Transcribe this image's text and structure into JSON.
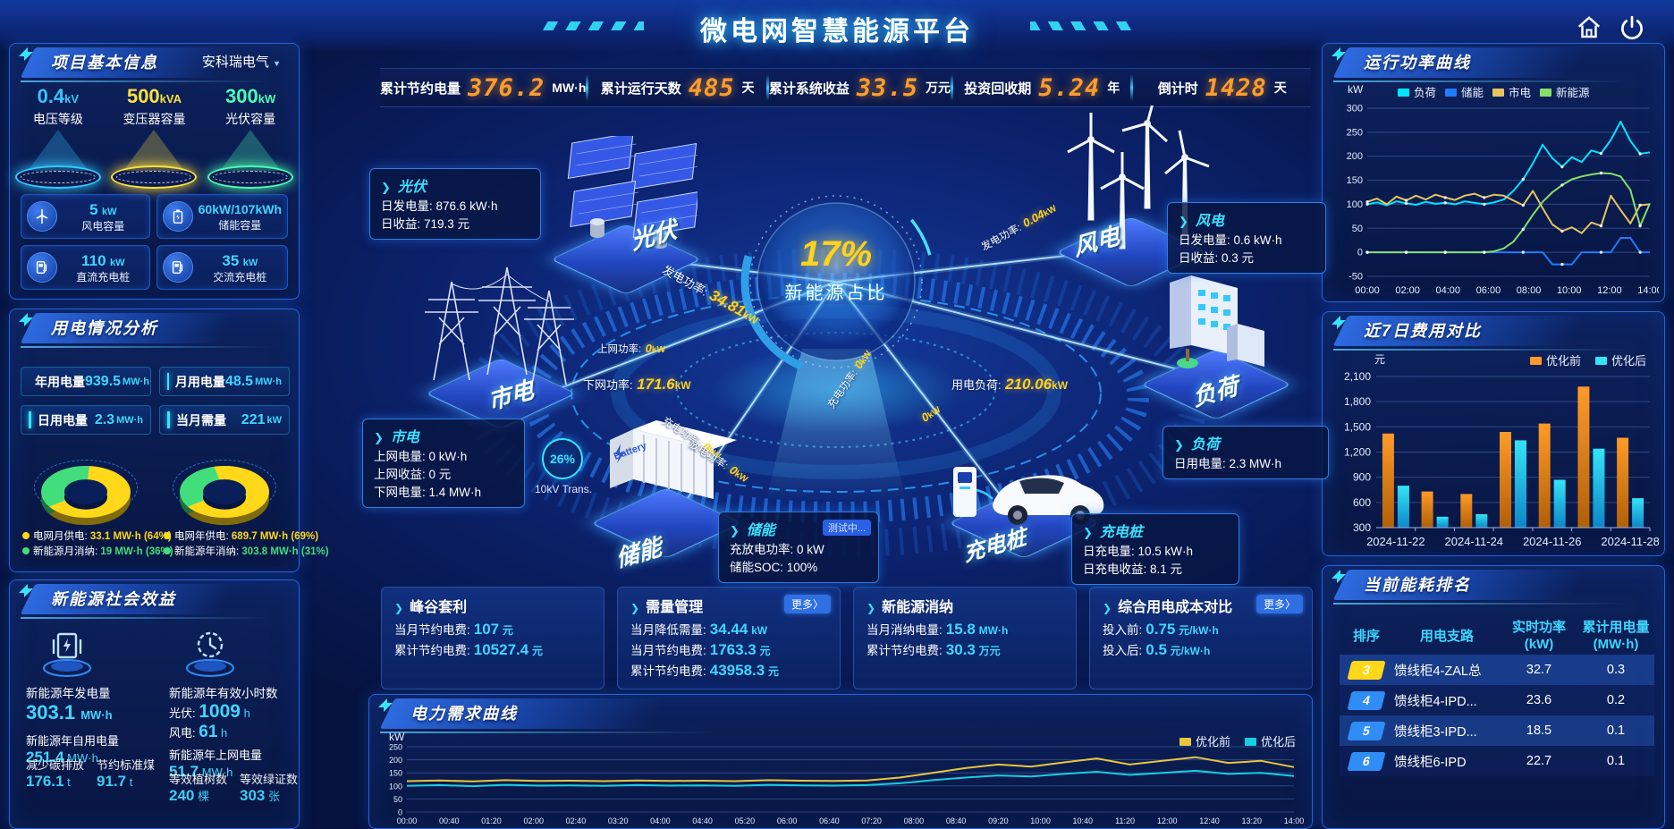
{
  "header": {
    "title": "微电网智慧能源平台"
  },
  "glyphs": {
    "chevron": "❯",
    "caret": "▼"
  },
  "stats_bar": [
    {
      "label": "累计节约电量",
      "value": "376.2",
      "unit": "MW·h"
    },
    {
      "label": "累计运行天数",
      "value": "485",
      "unit": "天"
    },
    {
      "label": "累计系统收益",
      "value": "33.5",
      "unit": "万元"
    },
    {
      "label": "投资回收期",
      "value": "5.24",
      "unit": "年"
    },
    {
      "label": "倒计时",
      "value": "1428",
      "unit": "天"
    }
  ],
  "left": {
    "project": {
      "title": "项目基本信息",
      "company": "安科瑞电气",
      "spotlights": [
        {
          "value": "0.4",
          "unit": "kV",
          "label": "电压等级",
          "color": "#35c8ff"
        },
        {
          "value": "500",
          "unit": "kVA",
          "label": "变压器容量",
          "color": "#ffe23e"
        },
        {
          "value": "300",
          "unit": "kW",
          "label": "光伏容量",
          "color": "#4dffb4"
        }
      ],
      "cards": [
        {
          "value": "5",
          "unit": "kW",
          "label": "风电容量"
        },
        {
          "value": "60kW/107kWh",
          "unit": "",
          "label": "储能容量"
        },
        {
          "value": "110",
          "unit": "kW",
          "label": "直流充电桩"
        },
        {
          "value": "35",
          "unit": "kW",
          "label": "交流充电桩"
        }
      ]
    },
    "usage": {
      "title": "用电情况分析",
      "stats": [
        {
          "label": "年用电量",
          "value": "939.5",
          "unit": "MW·h"
        },
        {
          "label": "月用电量",
          "value": "48.5",
          "unit": "MW·h"
        },
        {
          "label": "日用电量",
          "value": "2.3",
          "unit": "MW·h"
        },
        {
          "label": "当月需量",
          "value": "221",
          "unit": "kW"
        }
      ]
    },
    "benefits": {
      "title": "新能源社会效益",
      "gen": {
        "label": "新能源年发电量",
        "value": "303.1",
        "unit": "MW·h"
      },
      "hours": {
        "label": "新能源年有效小时数",
        "pv_label": "光伏:",
        "pv_value": "1009",
        "pv_unit": "h",
        "wind_label": "风电:",
        "wind_value": "61",
        "wind_unit": "h"
      },
      "self": {
        "label": "新能源年自用电量",
        "value": "251.4",
        "unit": "MW·h"
      },
      "export": {
        "label": "新能源年上网电量",
        "value": "51.7",
        "unit": "MW·h"
      },
      "co2": {
        "label": "减少碳排放",
        "value": "176.1",
        "unit": "t"
      },
      "coal": {
        "label": "节约标准煤",
        "value": "91.7",
        "unit": "t"
      },
      "trees": {
        "label": "等效植树数",
        "value": "240",
        "unit": "棵"
      },
      "certs": {
        "label": "等效绿证数",
        "value": "303",
        "unit": "张"
      }
    }
  },
  "scene": {
    "center_pct": "17%",
    "center_label": "新能源占比",
    "transformer_pct": "26%",
    "transformer_label": "10kV Trans.",
    "nodes": {
      "pv": "光伏",
      "grid": "市电",
      "storage": "储能",
      "wind": "风电",
      "load": "负荷",
      "pile": "充电桩"
    },
    "info_boxes": {
      "pv": {
        "title": "光伏",
        "rows": [
          [
            "日发电量:",
            "876.6 kW·h"
          ],
          [
            "日收益:",
            "719.3 元"
          ]
        ]
      },
      "grid": {
        "title": "市电",
        "rows": [
          [
            "上网电量:",
            "0 kW·h"
          ],
          [
            "上网收益:",
            "0 元"
          ],
          [
            "下网电量:",
            "1.4 MW·h"
          ]
        ]
      },
      "wind": {
        "title": "风电",
        "rows": [
          [
            "日发电量:",
            "0.6 kW·h"
          ],
          [
            "日收益:",
            "0.3 元"
          ]
        ]
      },
      "load": {
        "title": "负荷",
        "rows": [
          [
            "日用电量:",
            "2.3 MW·h"
          ]
        ]
      },
      "pile": {
        "title": "充电桩",
        "rows": [
          [
            "日充电量:",
            "10.5 kW·h"
          ],
          [
            "日充电收益:",
            "8.1 元"
          ]
        ]
      },
      "storage": {
        "title": "储能",
        "badge": "测试中...",
        "rows": [
          [
            "充放电功率:",
            "0 kW"
          ],
          [
            "储能SOC:",
            "100%"
          ]
        ]
      }
    },
    "flow_labels": {
      "pv_gen": {
        "label": "发电功率:",
        "value": "34.81",
        "unit": "kW"
      },
      "grid_up": {
        "label": "上网功率:",
        "value": "0",
        "unit": "kW"
      },
      "grid_down": {
        "label": "下网功率:",
        "value": "171.6",
        "unit": "kW"
      },
      "wind_gen": {
        "label": "发电功率:",
        "value": "0.04",
        "unit": "kW"
      },
      "load_power": {
        "label": "用电负荷:",
        "value": "210.06",
        "unit": "kW"
      },
      "storage_charge": {
        "label": "充电功率:",
        "value": "0",
        "unit": "kW"
      },
      "storage_discharge": {
        "label": "放电功率:",
        "value": "0",
        "unit": "kW"
      },
      "pile_charge": {
        "label": "充电功率:",
        "value": "0",
        "unit": "kW"
      },
      "load_branch": {
        "label": "",
        "value": "0",
        "unit": "kW"
      }
    }
  },
  "cards": [
    {
      "title": "峰谷套利",
      "more": "",
      "rows": [
        {
          "label": "当月节约电费:",
          "value": "107",
          "unit": "元"
        },
        {
          "label": "累计节约电费:",
          "value": "10527.4",
          "unit": "元"
        }
      ]
    },
    {
      "title": "需量管理",
      "more": "更多〉",
      "rows": [
        {
          "label": "当月降低需量:",
          "value": "34.44",
          "unit": "kW"
        },
        {
          "label": "当月节约电费:",
          "value": "1763.3",
          "unit": "元"
        },
        {
          "label": "累计节约电费:",
          "value": "43958.3",
          "unit": "元"
        }
      ]
    },
    {
      "title": "新能源消纳",
      "more": "",
      "rows": [
        {
          "label": "当月消纳电量:",
          "value": "15.8",
          "unit": "MW·h"
        },
        {
          "label": "累计节约电费:",
          "value": "30.3",
          "unit": "万元"
        }
      ]
    },
    {
      "title": "综合用电成本对比",
      "more": "更多〉",
      "rows": [
        {
          "label": "投入前:",
          "value": "0.75",
          "unit": "元/kW·h"
        },
        {
          "label": "投入后:",
          "value": "0.5",
          "unit": "元/kW·h"
        }
      ]
    }
  ],
  "right": {
    "power_panel_title": "运行功率曲线",
    "cost_panel_title": "近7日费用对比",
    "ranking": {
      "title": "当前能耗排名",
      "col_rank": "排序",
      "col_branch": "用电支路",
      "col_power": "实时功率",
      "col_power_unit": "(kW)",
      "col_energy": "累计用电量",
      "col_energy_unit": "(MW·h)",
      "rows": [
        {
          "rank": "3",
          "branch": "馈线柜4-ZAL总",
          "power": "32.7",
          "energy": "0.3",
          "badge_color": "#ffd819",
          "rank_color": "#0a2a66"
        },
        {
          "rank": "4",
          "branch": "馈线柜4-IPD...",
          "power": "23.6",
          "energy": "0.2",
          "badge_color": "#2f8df5",
          "rank_color": "#ffffff"
        },
        {
          "rank": "5",
          "branch": "馈线柜3-IPD...",
          "power": "18.5",
          "energy": "0.1",
          "badge_color": "#2f8df5",
          "rank_color": "#ffffff"
        },
        {
          "rank": "6",
          "branch": "馈线柜6-IPD",
          "power": "22.7",
          "energy": "0.1",
          "badge_color": "#2f8df5",
          "rank_color": "#ffffff"
        }
      ]
    }
  },
  "chart_data": [
    {
      "id": "power-curve",
      "type": "line",
      "title": "运行功率曲线",
      "ylabel": "kW",
      "ylim": [
        -50,
        300
      ],
      "yticks": [
        -50,
        0,
        50,
        100,
        150,
        200,
        250,
        300
      ],
      "x_labels": [
        "00:00",
        "02:00",
        "04:00",
        "06:00",
        "08:00",
        "10:00",
        "12:00",
        "14:00"
      ],
      "legend_position": "top",
      "grid": true,
      "series": [
        {
          "name": "负荷",
          "color": "#00e4ff",
          "values": [
            100,
            104,
            98,
            106,
            102,
            99,
            105,
            101,
            103,
            100,
            106,
            103,
            100,
            104,
            110,
            128,
            152,
            185,
            224,
            196,
            178,
            198,
            188,
            212,
            206,
            234,
            272,
            232,
            205,
            208
          ]
        },
        {
          "name": "储能",
          "color": "#1f7bff",
          "values": [
            0,
            0,
            0,
            0,
            0,
            0,
            0,
            0,
            0,
            0,
            0,
            0,
            0,
            0,
            0,
            0,
            0,
            0,
            0,
            -25,
            -25,
            -25,
            0,
            0,
            0,
            0,
            30,
            30,
            0,
            0
          ]
        },
        {
          "name": "市电",
          "color": "#e6c460",
          "values": [
            105,
            112,
            100,
            116,
            108,
            118,
            110,
            120,
            114,
            109,
            118,
            122,
            114,
            120,
            118,
            108,
            98,
            128,
            92,
            58,
            44,
            52,
            40,
            62,
            55,
            118,
            88,
            60,
            98,
            100
          ]
        },
        {
          "name": "新能源",
          "color": "#86e06a",
          "values": [
            0,
            0,
            0,
            0,
            0,
            0,
            0,
            0,
            0,
            0,
            0,
            0,
            0,
            2,
            8,
            22,
            48,
            78,
            105,
            125,
            140,
            152,
            158,
            162,
            165,
            164,
            158,
            130,
            55,
            102
          ]
        }
      ]
    },
    {
      "id": "cost-compare",
      "type": "bar",
      "title": "近7日费用对比",
      "ylabel": "元",
      "ylim": [
        300,
        2100
      ],
      "yticks": [
        300,
        600,
        900,
        1200,
        1500,
        1800,
        2100
      ],
      "categories": [
        "2024-11-22",
        "2024-11-23",
        "2024-11-24",
        "2024-11-25",
        "2024-11-26",
        "2024-11-27",
        "2024-11-28"
      ],
      "x_tick_labels": [
        "2024-11-22",
        "2024-11-24",
        "2024-11-26",
        "2024-11-28"
      ],
      "x_tick_indices": [
        0,
        2,
        4,
        6
      ],
      "legend_position": "top-right",
      "grid": true,
      "series": [
        {
          "name": "优化前",
          "color": "#ff9a28",
          "color2": "#b25f08",
          "values": [
            1420,
            730,
            700,
            1440,
            1540,
            1980,
            1370
          ]
        },
        {
          "name": "优化后",
          "color": "#33e4f5",
          "color2": "#0d86c9",
          "values": [
            800,
            430,
            460,
            1340,
            870,
            1240,
            650
          ]
        }
      ]
    },
    {
      "id": "demand-curve",
      "type": "line",
      "title": "电力需求曲线",
      "ylabel": "kW",
      "ylim": [
        0,
        250
      ],
      "yticks": [
        0,
        50,
        100,
        150,
        200,
        250
      ],
      "x_labels": [
        "00:00",
        "00:40",
        "01:20",
        "02:00",
        "02:40",
        "03:20",
        "04:00",
        "04:40",
        "05:20",
        "06:00",
        "06:40",
        "07:20",
        "08:00",
        "08:40",
        "09:20",
        "10:00",
        "10:40",
        "11:20",
        "12:00",
        "12:40",
        "13:20",
        "14:00"
      ],
      "legend_position": "top-right",
      "grid": true,
      "series": [
        {
          "name": "优化前",
          "color": "#e8c63f",
          "values": [
            118,
            121,
            117,
            122,
            119,
            120,
            118,
            121,
            119,
            120,
            118,
            122,
            120,
            119,
            121,
            132,
            150,
            168,
            182,
            174,
            190,
            205,
            182,
            196,
            210,
            188,
            196,
            172
          ]
        },
        {
          "name": "优化后",
          "color": "#15cfe0",
          "values": [
            100,
            103,
            99,
            104,
            101,
            102,
            100,
            103,
            101,
            102,
            100,
            104,
            102,
            101,
            103,
            110,
            122,
            132,
            140,
            136,
            146,
            154,
            142,
            150,
            158,
            146,
            150,
            138
          ]
        }
      ]
    },
    {
      "id": "monthly-supply-donut",
      "type": "pie",
      "slices": [
        {
          "label": "电网月供电:",
          "value_text": "33.1 MW·h (64%)",
          "pct": 64,
          "color": "#ffd819"
        },
        {
          "label": "新能源月消纳:",
          "value_text": "19 MW·h (36%)",
          "pct": 36,
          "color": "#43de7c"
        }
      ]
    },
    {
      "id": "yearly-supply-donut",
      "type": "pie",
      "slices": [
        {
          "label": "电网年供电:",
          "value_text": "689.7 MW·h (69%)",
          "pct": 69,
          "color": "#ffd819"
        },
        {
          "label": "新能源年消纳:",
          "value_text": "303.8 MW·h (31%)",
          "pct": 31,
          "color": "#43de7c"
        }
      ]
    }
  ]
}
